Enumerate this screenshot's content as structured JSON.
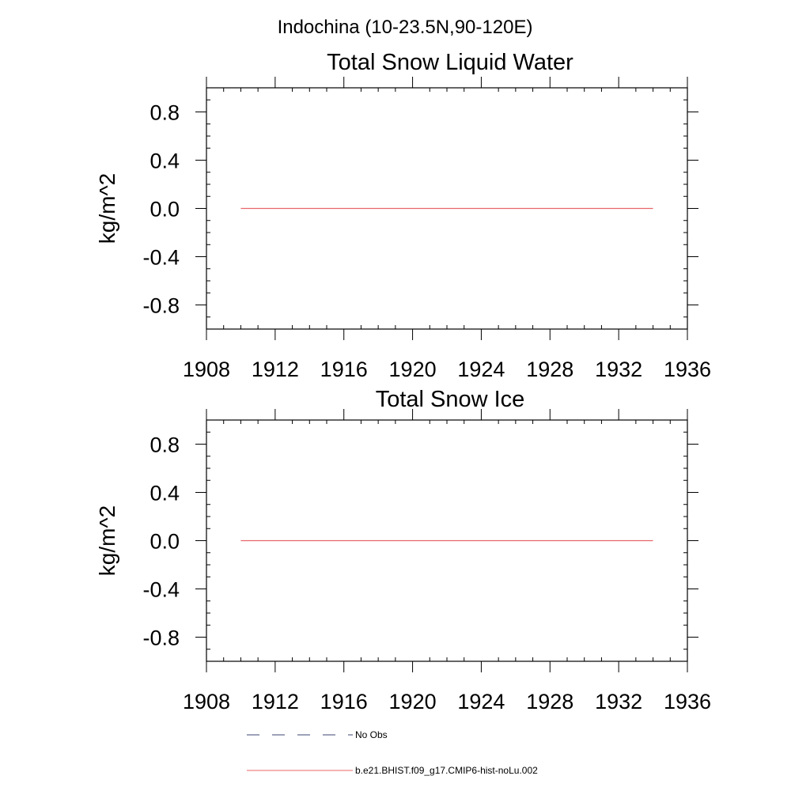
{
  "figure": {
    "title": "Indochina (10-23.5N,90-120E)"
  },
  "colors": {
    "model_line": "#e8666b",
    "obs_line": "#3b4470",
    "axis": "#000000",
    "background": "#ffffff"
  },
  "chart_data": [
    {
      "type": "line",
      "title": "Total Snow Liquid Water",
      "xlabel": "",
      "ylabel": "kg/m^2",
      "xlim": [
        1908,
        1936
      ],
      "ylim": [
        -1.0,
        1.0
      ],
      "xticks": [
        "1908",
        "1912",
        "1916",
        "1920",
        "1924",
        "1928",
        "1932",
        "1936"
      ],
      "yticks": [
        "0.8",
        "0.4",
        "0.0",
        "-0.4",
        "-0.8"
      ],
      "grid": false,
      "series": [
        {
          "name": "b.e21.BHIST.f09_g17.CMIP6-hist-noLu.002",
          "x": [
            1910,
            1934
          ],
          "y": [
            0.0,
            0.0
          ]
        }
      ]
    },
    {
      "type": "line",
      "title": "Total Snow Ice",
      "xlabel": "",
      "ylabel": "kg/m^2",
      "xlim": [
        1908,
        1936
      ],
      "ylim": [
        -1.0,
        1.0
      ],
      "xticks": [
        "1908",
        "1912",
        "1916",
        "1920",
        "1924",
        "1928",
        "1932",
        "1936"
      ],
      "yticks": [
        "0.8",
        "0.4",
        "0.0",
        "-0.4",
        "-0.8"
      ],
      "grid": false,
      "series": [
        {
          "name": "b.e21.BHIST.f09_g17.CMIP6-hist-noLu.002",
          "x": [
            1910,
            1934
          ],
          "y": [
            0.0,
            0.0
          ]
        }
      ]
    }
  ],
  "legend": {
    "placement": "bottom",
    "entries": [
      {
        "label": "No Obs",
        "style": "dashed"
      },
      {
        "label": "b.e21.BHIST.f09_g17.CMIP6-hist-noLu.002",
        "style": "solid"
      }
    ]
  }
}
